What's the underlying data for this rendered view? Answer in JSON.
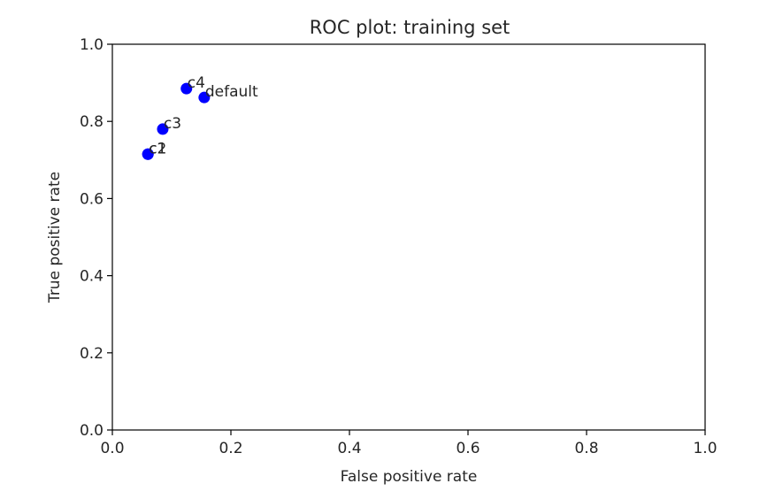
{
  "chart_data": {
    "type": "scatter",
    "title": "ROC plot: training set",
    "xlabel": "False positive rate",
    "ylabel": "True positive rate",
    "xlim": [
      0.0,
      1.0
    ],
    "ylim": [
      0.0,
      1.0
    ],
    "xticks": [
      "0.0",
      "0.2",
      "0.4",
      "0.6",
      "0.8",
      "1.0"
    ],
    "yticks": [
      "0.0",
      "0.2",
      "0.4",
      "0.6",
      "0.8",
      "1.0"
    ],
    "grid": false,
    "point_color": "#0000ff",
    "points": [
      {
        "label": "c1",
        "x": 0.06,
        "y": 0.715
      },
      {
        "label": "c2",
        "x": 0.06,
        "y": 0.715
      },
      {
        "label": "c3",
        "x": 0.085,
        "y": 0.78
      },
      {
        "label": "c4",
        "x": 0.125,
        "y": 0.885
      },
      {
        "label": "default",
        "x": 0.155,
        "y": 0.862
      }
    ]
  }
}
